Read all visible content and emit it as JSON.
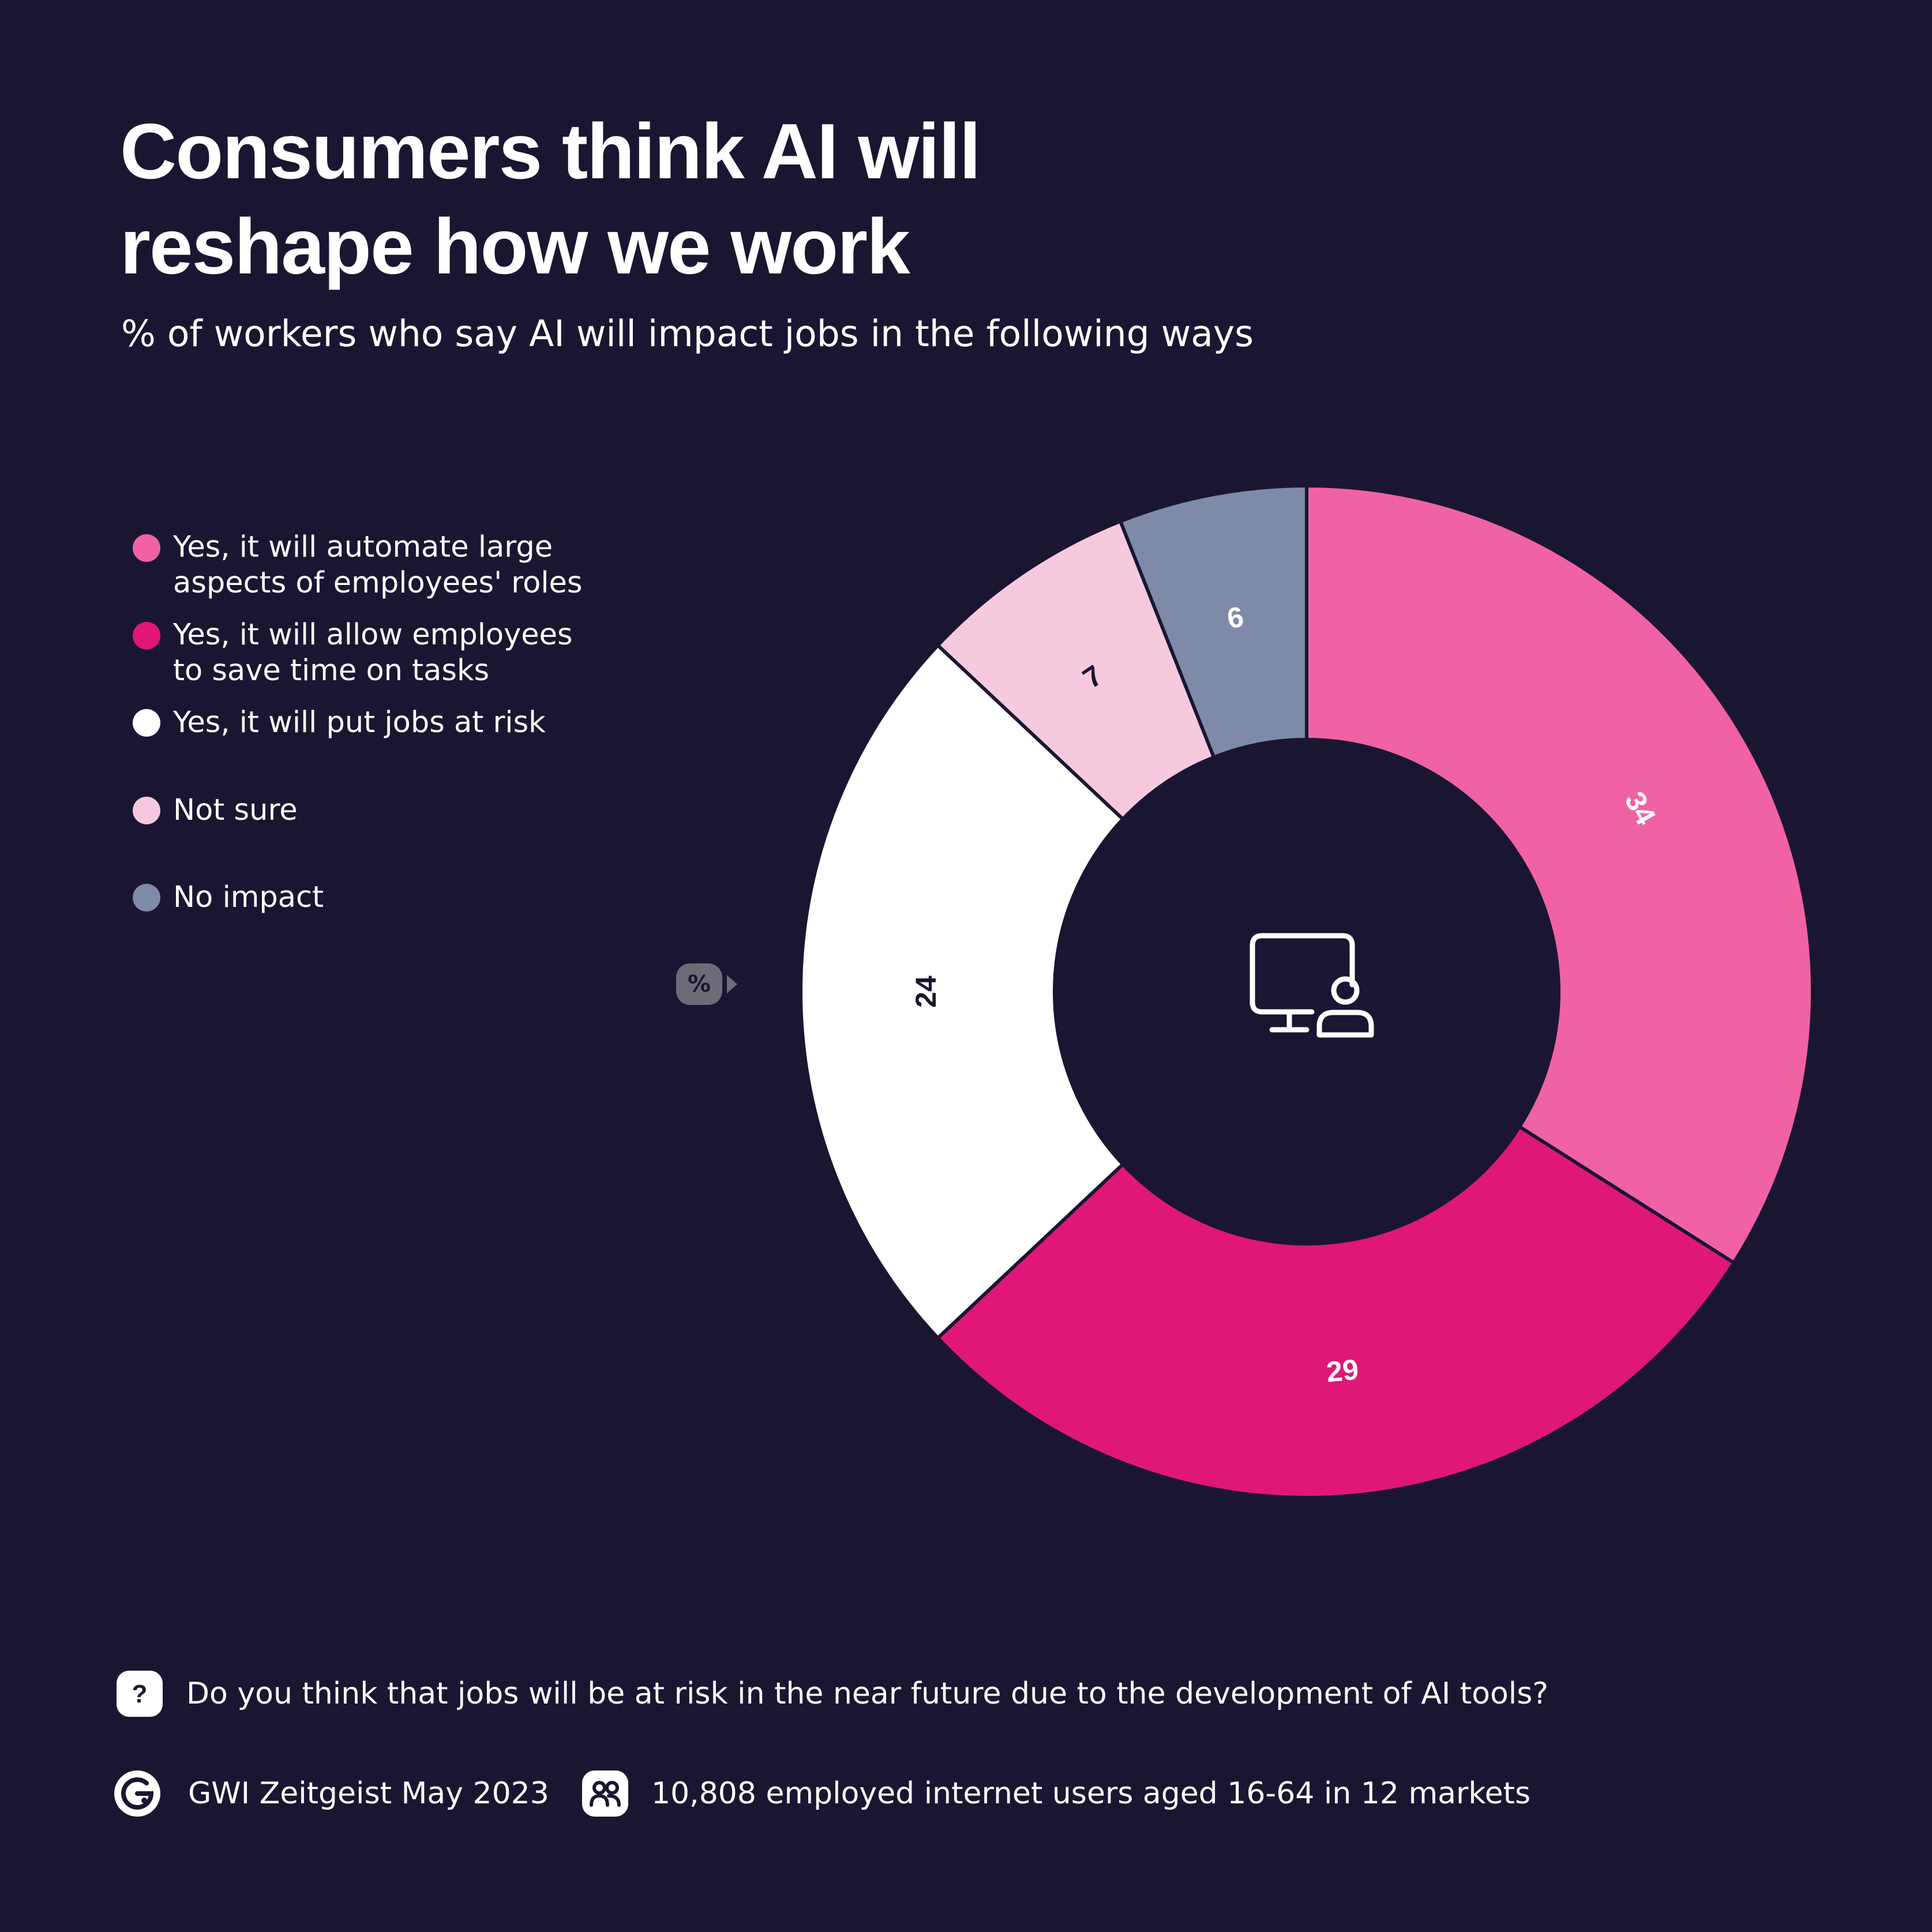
{
  "title": "Consumers think AI will reshape how we work",
  "subtitle": "% of workers who say AI will impact jobs in the following ways",
  "percent_tag": "%",
  "legend": [
    {
      "label": "Yes, it will automate large\naspects of employees' roles",
      "color": "#f062a3"
    },
    {
      "label": "Yes, it will allow employees\nto save time on tasks",
      "color": "#e01777"
    },
    {
      "label": "Yes, it will put jobs at risk",
      "color": "#ffffff"
    },
    {
      "label": "Not sure",
      "color": "#f7c9df"
    },
    {
      "label": "No impact",
      "color": "#7e8ba8"
    }
  ],
  "chart_data": {
    "type": "pie",
    "donut": true,
    "center_icon": "monitor-user-icon",
    "categories": [
      "Yes, it will automate large aspects of employees' roles",
      "Yes, it will allow employees to save time on tasks",
      "Yes, it will put jobs at risk",
      "Not sure",
      "No impact"
    ],
    "values": [
      34,
      29,
      24,
      7,
      6
    ],
    "colors": [
      "#f062a3",
      "#e01777",
      "#ffffff",
      "#f7c9df",
      "#7e8ba8"
    ],
    "label_colors": [
      "#ffffff",
      "#ffffff",
      "#1a1631",
      "#1a1631",
      "#ffffff"
    ],
    "unit": "%"
  },
  "footer": {
    "question": "Do you think that jobs will be at risk in the near future due to the development of AI tools?",
    "source": "GWI Zeitgeist May 2023",
    "sample": "10,808 employed internet users aged 16-64 in 12 markets",
    "question_icon": "question-icon",
    "source_icon": "gwi-logo-icon",
    "sample_icon": "people-icon"
  },
  "colors": {
    "background": "#1a1631",
    "text": "#ffffff"
  }
}
